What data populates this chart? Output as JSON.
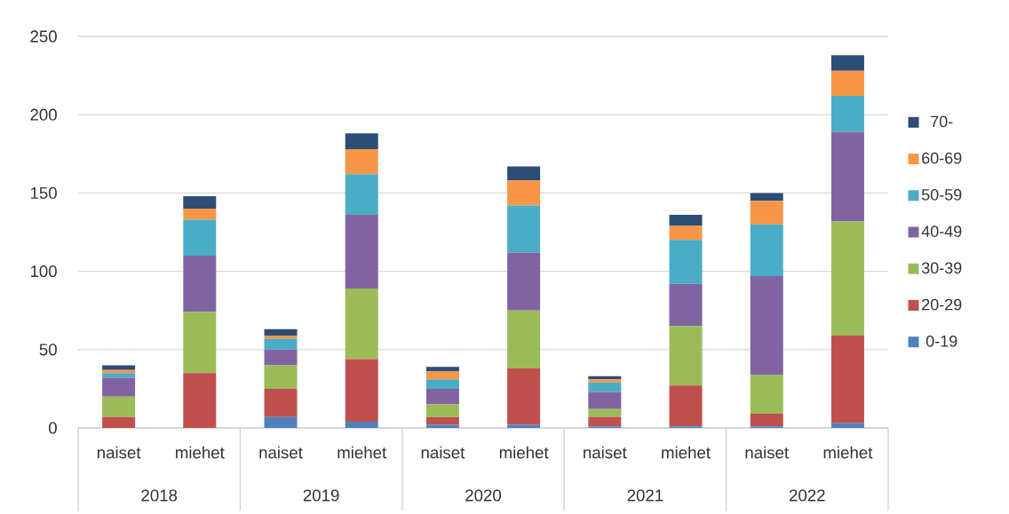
{
  "chart_data": {
    "type": "bar",
    "stacked": true,
    "categories": [
      "naiset",
      "miehet",
      "naiset",
      "miehet",
      "naiset",
      "miehet",
      "naiset",
      "miehet",
      "naiset",
      "miehet"
    ],
    "annotations": [
      "2018",
      "2019",
      "2020",
      "2021",
      "2022"
    ],
    "series": [
      {
        "name": "0-19",
        "color": "#4f81bd",
        "values": [
          0,
          0,
          7,
          4,
          2,
          2,
          1,
          1,
          1,
          3
        ]
      },
      {
        "name": "20-29",
        "color": "#c0504d",
        "values": [
          7,
          35,
          18,
          40,
          5,
          36,
          6,
          26,
          8,
          56
        ]
      },
      {
        "name": "30-39",
        "color": "#9bbb59",
        "values": [
          13,
          39,
          15,
          45,
          8,
          37,
          5,
          38,
          25,
          73
        ]
      },
      {
        "name": "40-49",
        "color": "#8064a2",
        "values": [
          12,
          36,
          10,
          47,
          10,
          37,
          11,
          27,
          63,
          57
        ]
      },
      {
        "name": "50-59",
        "color": "#4bacc6",
        "values": [
          3,
          23,
          7,
          26,
          6,
          30,
          6,
          28,
          33,
          23
        ]
      },
      {
        "name": "60-69",
        "color": "#f79646",
        "values": [
          2,
          7,
          2,
          16,
          5,
          16,
          2,
          9,
          15,
          16
        ]
      },
      {
        "name": "70-",
        "color": "#2c4d75",
        "values": [
          3,
          8,
          4,
          10,
          3,
          9,
          2,
          7,
          5,
          10
        ]
      }
    ],
    "ylim": [
      0,
      250
    ],
    "yticks": [
      0,
      50,
      100,
      150,
      200,
      250
    ],
    "grid": "y",
    "legend": "right"
  }
}
